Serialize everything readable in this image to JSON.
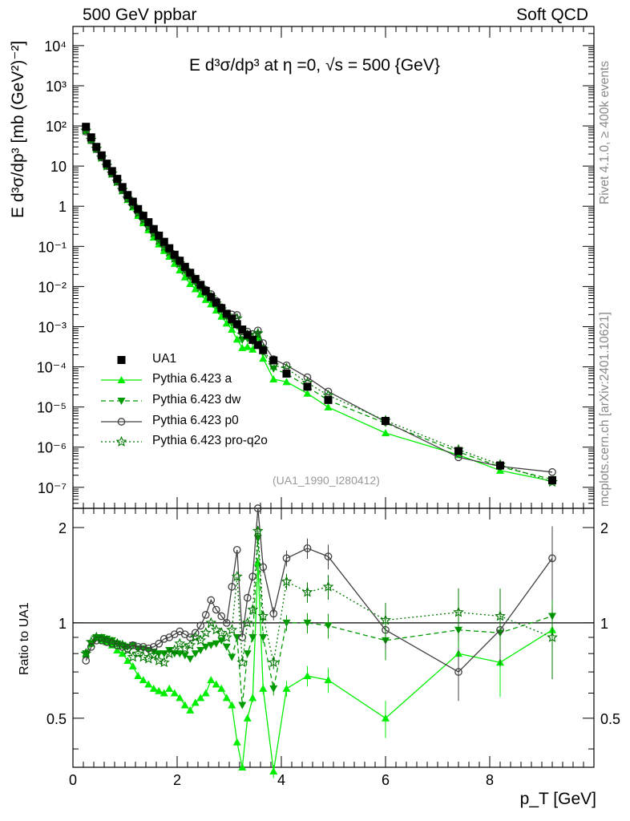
{
  "header": {
    "left": "500 GeV ppbar",
    "right": "Soft QCD",
    "side_top": "Rivet 4.1.0, ≥ 400k events",
    "side_bottom": "mcplots.cern.ch [arXiv:2401.10621]"
  },
  "chart_data": {
    "type": "scatter",
    "title": "E  d³σ/dp³ at η =0, √s = 500 {GeV}",
    "analysis_tag": "(UA1_1990_I280412)",
    "xlabel": "p_T [GeV]",
    "ylabel": "E d³σ/dp³ [mb (GeV²)⁻²]",
    "ratio_ylabel": "Ratio to UA1",
    "xlim": [
      0,
      10
    ],
    "ylim": [
      3e-08,
      30000
    ],
    "ratio_ylim": [
      0.35,
      2.3
    ],
    "yscale": "log",
    "x_ticks": [
      "0",
      "2",
      "4",
      "6",
      "8"
    ],
    "y_ticks": [
      "10⁻⁷",
      "10⁻⁶",
      "10⁻⁵",
      "10⁻⁴",
      "10⁻³",
      "10⁻²",
      "10⁻¹",
      "1",
      "10",
      "10²",
      "10³",
      "10⁴"
    ],
    "ratio_ticks": [
      "0.5",
      "1",
      "2"
    ],
    "legend_position": "bottom-left",
    "x": [
      0.25,
      0.35,
      0.45,
      0.55,
      0.65,
      0.75,
      0.85,
      0.95,
      1.05,
      1.15,
      1.25,
      1.35,
      1.45,
      1.55,
      1.65,
      1.75,
      1.85,
      1.95,
      2.05,
      2.15,
      2.25,
      2.35,
      2.45,
      2.55,
      2.65,
      2.75,
      2.85,
      2.95,
      3.05,
      3.15,
      3.25,
      3.35,
      3.45,
      3.55,
      3.65,
      3.85,
      4.1,
      4.5,
      4.9,
      6.0,
      7.4,
      8.2,
      9.2
    ],
    "data": {
      "name": "UA1",
      "values": [
        95,
        52,
        30,
        18.5,
        11.5,
        7.5,
        4.8,
        3.0,
        1.9,
        1.3,
        0.85,
        0.58,
        0.4,
        0.27,
        0.185,
        0.13,
        0.09,
        0.062,
        0.044,
        0.031,
        0.022,
        0.0155,
        0.011,
        0.0078,
        0.0055,
        0.004,
        0.0029,
        0.0021,
        0.00155,
        0.00115,
        0.00085,
        0.00063,
        0.00047,
        0.00035,
        0.00026,
        0.000145,
        6.8e-05,
        3.2e-05,
        1.5e-05,
        4.5e-06,
        8e-07,
        3.5e-07,
        1.5e-07
      ]
    },
    "series": [
      {
        "name": "Pythia 6.423 a",
        "color": "#00ee00",
        "style": "solid",
        "marker": "triangle-up",
        "ratio": [
          0.8,
          0.86,
          0.9,
          0.88,
          0.87,
          0.85,
          0.82,
          0.8,
          0.76,
          0.73,
          0.68,
          0.66,
          0.64,
          0.62,
          0.61,
          0.6,
          0.62,
          0.6,
          0.58,
          0.55,
          0.53,
          0.56,
          0.58,
          0.6,
          0.66,
          0.64,
          0.62,
          0.58,
          0.55,
          0.42,
          0.35,
          0.5,
          0.58,
          1.55,
          0.62,
          0.34,
          0.62,
          0.68,
          0.66,
          0.5,
          0.8,
          0.75,
          0.95
        ]
      },
      {
        "name": "Pythia 6.423 dw",
        "color": "#009900",
        "style": "dashed",
        "marker": "triangle-down",
        "ratio": [
          0.8,
          0.86,
          0.9,
          0.9,
          0.89,
          0.88,
          0.86,
          0.85,
          0.84,
          0.85,
          0.83,
          0.83,
          0.82,
          0.81,
          0.8,
          0.8,
          0.82,
          0.8,
          0.8,
          0.79,
          0.77,
          0.8,
          0.82,
          0.84,
          0.85,
          0.86,
          0.88,
          0.84,
          0.78,
          0.9,
          0.55,
          0.8,
          0.9,
          1.85,
          0.9,
          0.62,
          1.0,
          1.0,
          0.98,
          0.88,
          0.95,
          0.93,
          1.05
        ]
      },
      {
        "name": "Pythia 6.423 p0",
        "color": "#404040",
        "style": "solid",
        "marker": "circle-open",
        "ratio": [
          0.76,
          0.84,
          0.88,
          0.88,
          0.87,
          0.86,
          0.85,
          0.84,
          0.83,
          0.85,
          0.84,
          0.84,
          0.83,
          0.84,
          0.86,
          0.89,
          0.9,
          0.92,
          0.94,
          0.92,
          0.9,
          0.93,
          0.98,
          1.06,
          1.18,
          1.1,
          1.05,
          1.0,
          1.3,
          1.7,
          0.9,
          1.2,
          1.4,
          2.3,
          1.5,
          1.07,
          1.6,
          1.72,
          1.62,
          0.95,
          0.7,
          0.95,
          1.6
        ]
      },
      {
        "name": "Pythia 6.423 pro-q2o",
        "color": "#007700",
        "style": "dotted",
        "marker": "star-open",
        "ratio": [
          0.8,
          0.87,
          0.9,
          0.89,
          0.88,
          0.87,
          0.86,
          0.85,
          0.82,
          0.78,
          0.8,
          0.78,
          0.77,
          0.79,
          0.76,
          0.75,
          0.8,
          0.82,
          0.86,
          0.83,
          0.85,
          0.9,
          0.88,
          0.93,
          1.0,
          0.95,
          0.93,
          0.9,
          0.95,
          1.4,
          0.75,
          1.0,
          1.1,
          1.95,
          1.05,
          0.75,
          1.35,
          1.25,
          1.3,
          1.02,
          1.08,
          1.05,
          0.9
        ]
      }
    ]
  }
}
